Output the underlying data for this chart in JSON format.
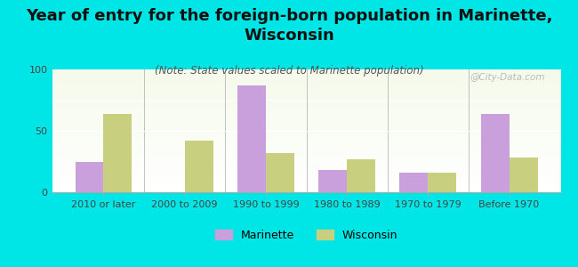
{
  "title": "Year of entry for the foreign-born population in Marinette,\nWisconsin",
  "subtitle": "(Note: State values scaled to Marinette population)",
  "categories": [
    "2010 or later",
    "2000 to 2009",
    "1990 to 1999",
    "1980 to 1989",
    "1970 to 1979",
    "Before 1970"
  ],
  "marinette_values": [
    25,
    0,
    87,
    18,
    16,
    64
  ],
  "wisconsin_values": [
    64,
    42,
    32,
    27,
    16,
    28
  ],
  "marinette_color": "#c9a0dc",
  "wisconsin_color": "#c8d080",
  "background_color": "#00e5e5",
  "ylim": [
    0,
    100
  ],
  "yticks": [
    0,
    50,
    100
  ],
  "bar_width": 0.35,
  "title_fontsize": 13,
  "subtitle_fontsize": 8.5,
  "tick_fontsize": 8,
  "legend_fontsize": 9,
  "watermark": "@City-Data.com"
}
